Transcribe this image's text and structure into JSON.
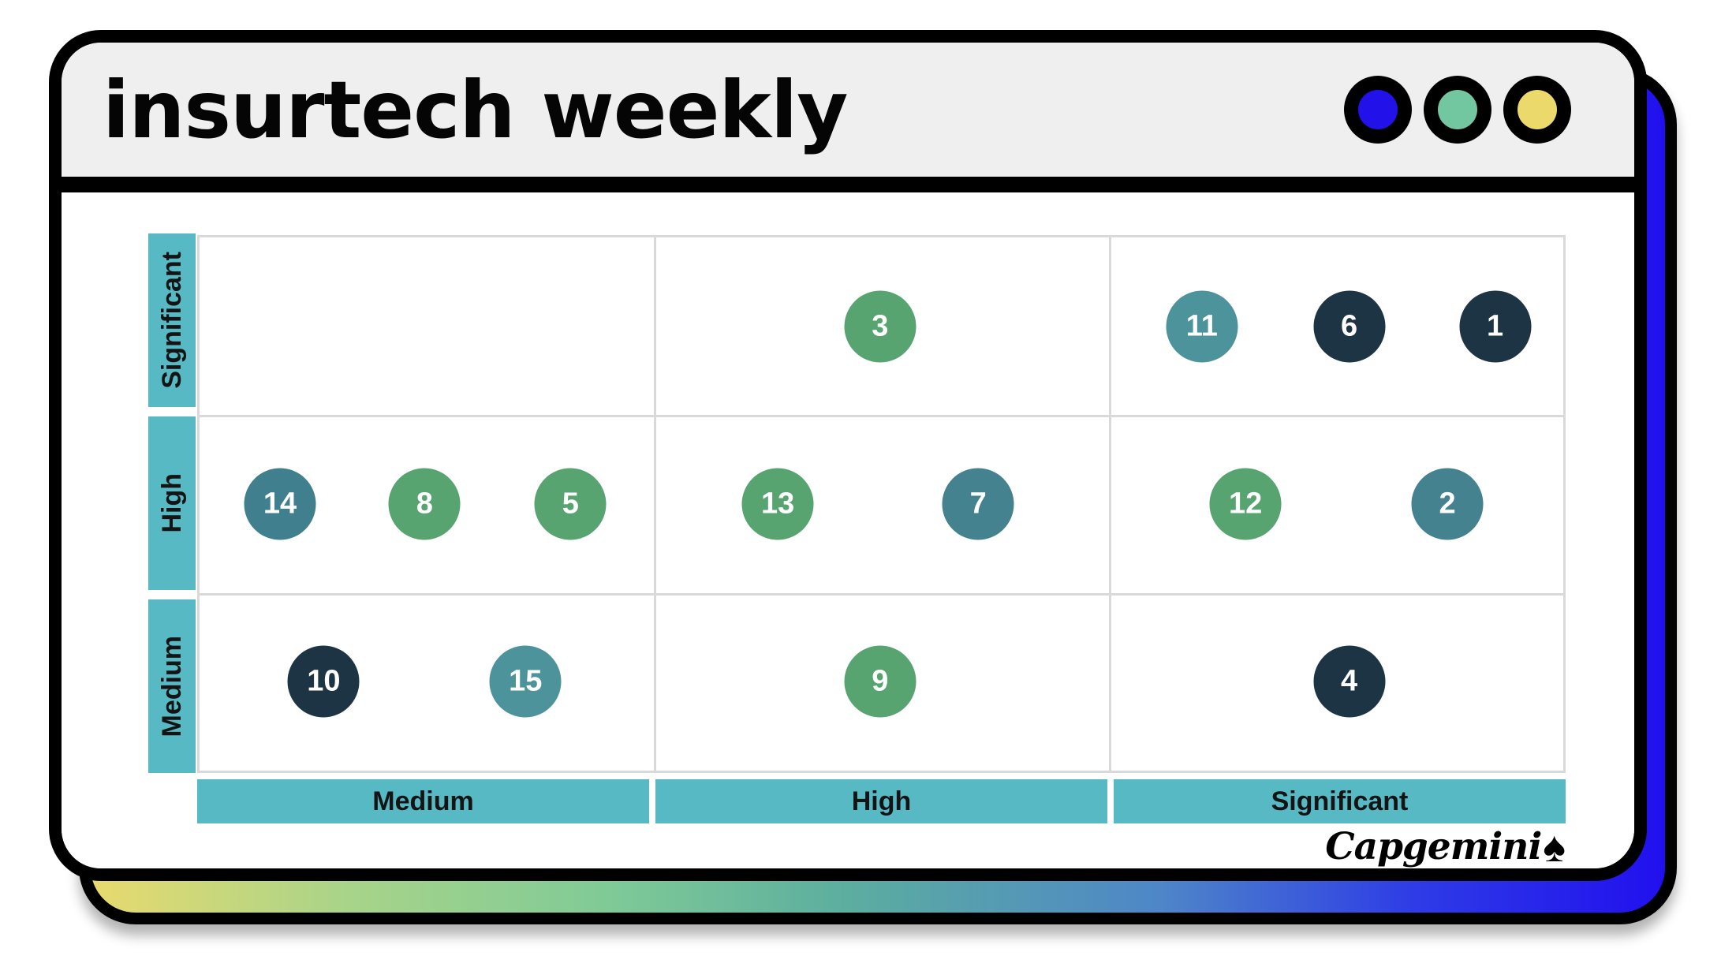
{
  "window": {
    "title": "insurtech weekly",
    "titlebar_color": "#efefef",
    "border_color": "#000000",
    "buttons": [
      {
        "name": "blue-button",
        "color": "#2211e8"
      },
      {
        "name": "green-button",
        "color": "#72c6a0"
      },
      {
        "name": "yellow-button",
        "color": "#ecd96c"
      }
    ],
    "shadow_gradient": [
      "#e8da6e",
      "#7fca97",
      "#4e86c8",
      "#2110ee"
    ]
  },
  "chart_data": {
    "type": "scatter",
    "x_categories": [
      "Medium",
      "High",
      "Significant"
    ],
    "y_categories_top_to_bottom": [
      "Significant",
      "High",
      "Medium"
    ],
    "axis_bar_color": "#56b9c4",
    "grid_color": "#d9d9d9",
    "legend": "none",
    "point_colors": {
      "green": "#57a471",
      "teal": "#43828e",
      "teal_light": "#4d939c",
      "dark": "#1d3444"
    },
    "points": [
      {
        "id": 3,
        "row": "Significant",
        "col": "High",
        "fx": 0.499,
        "color": "#57a471"
      },
      {
        "id": 11,
        "row": "Significant",
        "col": "Significant",
        "fx": 0.735,
        "color": "#4d939c"
      },
      {
        "id": 6,
        "row": "Significant",
        "col": "Significant",
        "fx": 0.843,
        "color": "#1d3444"
      },
      {
        "id": 1,
        "row": "Significant",
        "col": "Significant",
        "fx": 0.95,
        "color": "#1d3444"
      },
      {
        "id": 14,
        "row": "High",
        "col": "Medium",
        "fx": 0.059,
        "color": "#3f7f8e"
      },
      {
        "id": 8,
        "row": "High",
        "col": "Medium",
        "fx": 0.165,
        "color": "#57a471"
      },
      {
        "id": 5,
        "row": "High",
        "col": "Medium",
        "fx": 0.272,
        "color": "#57a471"
      },
      {
        "id": 13,
        "row": "High",
        "col": "High",
        "fx": 0.424,
        "color": "#57a471"
      },
      {
        "id": 7,
        "row": "High",
        "col": "High",
        "fx": 0.571,
        "color": "#43828e"
      },
      {
        "id": 12,
        "row": "High",
        "col": "Significant",
        "fx": 0.767,
        "color": "#57a471"
      },
      {
        "id": 2,
        "row": "High",
        "col": "Significant",
        "fx": 0.915,
        "color": "#43828e"
      },
      {
        "id": 10,
        "row": "Medium",
        "col": "Medium",
        "fx": 0.091,
        "color": "#1d3444"
      },
      {
        "id": 15,
        "row": "Medium",
        "col": "Medium",
        "fx": 0.239,
        "color": "#4d939c"
      },
      {
        "id": 9,
        "row": "Medium",
        "col": "High",
        "fx": 0.499,
        "color": "#57a471"
      },
      {
        "id": 4,
        "row": "Medium",
        "col": "Significant",
        "fx": 0.843,
        "color": "#1d3444"
      }
    ]
  },
  "branding": {
    "logo_text": "Capgemini",
    "logo_symbol": "♠"
  }
}
